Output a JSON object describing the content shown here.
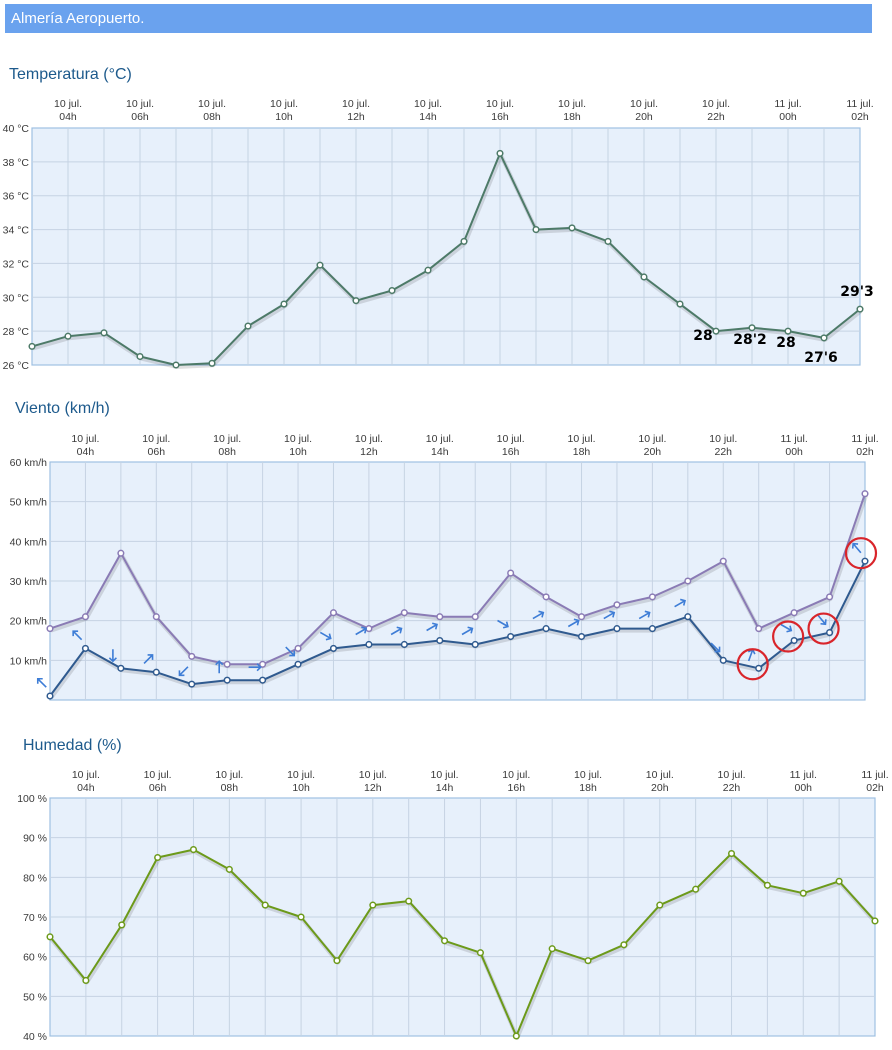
{
  "station": "Almería Aeropuerto.",
  "colors": {
    "temperature": "#4d7a68",
    "wind_gust": "#8a7bb5",
    "wind_mean": "#2f5a8f",
    "wind_arrow": "#3e7dd6",
    "humidity": "#6c9a1a",
    "highlight_circle": "#d9252b"
  },
  "chart_data": [
    {
      "id": "temperature",
      "type": "line",
      "title": "Temperatura (°C)",
      "x": [
        "03h",
        "04h",
        "05h",
        "06h",
        "07h",
        "08h",
        "09h",
        "10h",
        "11h",
        "12h",
        "13h",
        "14h",
        "15h",
        "16h",
        "17h",
        "18h",
        "19h",
        "20h",
        "21h",
        "22h",
        "23h",
        "00h",
        "01h",
        "02h"
      ],
      "x_tick_labels": [
        {
          "date": "10 jul.",
          "hour": "04h"
        },
        {
          "date": "10 jul.",
          "hour": "06h"
        },
        {
          "date": "10 jul.",
          "hour": "08h"
        },
        {
          "date": "10 jul.",
          "hour": "10h"
        },
        {
          "date": "10 jul.",
          "hour": "12h"
        },
        {
          "date": "10 jul.",
          "hour": "14h"
        },
        {
          "date": "10 jul.",
          "hour": "16h"
        },
        {
          "date": "10 jul.",
          "hour": "18h"
        },
        {
          "date": "10 jul.",
          "hour": "20h"
        },
        {
          "date": "10 jul.",
          "hour": "22h"
        },
        {
          "date": "11 jul.",
          "hour": "00h"
        },
        {
          "date": "11 jul.",
          "hour": "02h"
        }
      ],
      "series": [
        {
          "values": [
            27.1,
            27.7,
            27.9,
            26.5,
            26.0,
            26.1,
            28.3,
            29.6,
            31.9,
            29.8,
            30.4,
            31.6,
            33.3,
            38.5,
            34.0,
            34.1,
            33.3,
            31.2,
            29.6,
            28.0,
            28.2,
            28.0,
            27.6,
            29.3
          ]
        }
      ],
      "ylim": [
        26,
        40
      ],
      "y_ticks": [
        26,
        28,
        30,
        32,
        34,
        36,
        38,
        40
      ],
      "y_tick_labels": [
        "26 °C",
        "28 °C",
        "30 °C",
        "32 °C",
        "34 °C",
        "36 °C",
        "38 °C",
        "40 °C"
      ],
      "annotations": [
        {
          "text": "28",
          "point": 19
        },
        {
          "text": "28'2",
          "point": 20
        },
        {
          "text": "28",
          "point": 21
        },
        {
          "text": "27'6",
          "point": 22
        },
        {
          "text": "29'3",
          "point": 23
        }
      ]
    },
    {
      "id": "wind",
      "type": "line",
      "title": "Viento (km/h)",
      "x": [
        "03h",
        "04h",
        "05h",
        "06h",
        "07h",
        "08h",
        "09h",
        "10h",
        "11h",
        "12h",
        "13h",
        "14h",
        "15h",
        "16h",
        "17h",
        "18h",
        "19h",
        "20h",
        "21h",
        "22h",
        "23h",
        "00h",
        "01h",
        "02h"
      ],
      "x_tick_labels": [
        {
          "date": "10 jul.",
          "hour": "04h"
        },
        {
          "date": "10 jul.",
          "hour": "06h"
        },
        {
          "date": "10 jul.",
          "hour": "08h"
        },
        {
          "date": "10 jul.",
          "hour": "10h"
        },
        {
          "date": "10 jul.",
          "hour": "12h"
        },
        {
          "date": "10 jul.",
          "hour": "14h"
        },
        {
          "date": "10 jul.",
          "hour": "16h"
        },
        {
          "date": "10 jul.",
          "hour": "18h"
        },
        {
          "date": "10 jul.",
          "hour": "20h"
        },
        {
          "date": "10 jul.",
          "hour": "22h"
        },
        {
          "date": "11 jul.",
          "hour": "00h"
        },
        {
          "date": "11 jul.",
          "hour": "02h"
        }
      ],
      "series": [
        {
          "values": [
            18,
            21,
            37,
            21,
            11,
            9,
            9,
            13,
            22,
            18,
            22,
            21,
            21,
            32,
            26,
            21,
            24,
            26,
            30,
            35,
            18,
            22,
            26,
            52
          ]
        },
        {
          "values": [
            1,
            13,
            8,
            7,
            4,
            5,
            5,
            9,
            13,
            14,
            14,
            15,
            14,
            16,
            18,
            16,
            18,
            18,
            21,
            10,
            8,
            15,
            17,
            35
          ]
        }
      ],
      "wind_direction_deg": [
        135,
        135,
        0,
        225,
        45,
        180,
        270,
        315,
        300,
        240,
        240,
        240,
        240,
        300,
        240,
        240,
        240,
        240,
        240,
        315,
        200,
        300,
        320,
        140
      ],
      "ylim": [
        0,
        60
      ],
      "y_ticks": [
        10,
        20,
        30,
        40,
        50,
        60
      ],
      "y_tick_labels": [
        "10 km/h",
        "20 km/h",
        "30 km/h",
        "40 km/h",
        "50 km/h",
        "60 km/h"
      ],
      "highlighted_points": [
        20,
        21,
        22,
        23
      ]
    },
    {
      "id": "humidity",
      "type": "line",
      "title": "Humedad (%)",
      "x": [
        "03h",
        "04h",
        "05h",
        "06h",
        "07h",
        "08h",
        "09h",
        "10h",
        "11h",
        "12h",
        "13h",
        "14h",
        "15h",
        "16h",
        "17h",
        "18h",
        "19h",
        "20h",
        "21h",
        "22h",
        "23h",
        "00h",
        "01h",
        "02h"
      ],
      "x_tick_labels": [
        {
          "date": "10 jul.",
          "hour": "04h"
        },
        {
          "date": "10 jul.",
          "hour": "06h"
        },
        {
          "date": "10 jul.",
          "hour": "08h"
        },
        {
          "date": "10 jul.",
          "hour": "10h"
        },
        {
          "date": "10 jul.",
          "hour": "12h"
        },
        {
          "date": "10 jul.",
          "hour": "14h"
        },
        {
          "date": "10 jul.",
          "hour": "16h"
        },
        {
          "date": "10 jul.",
          "hour": "18h"
        },
        {
          "date": "10 jul.",
          "hour": "20h"
        },
        {
          "date": "10 jul.",
          "hour": "22h"
        },
        {
          "date": "11 jul.",
          "hour": "00h"
        },
        {
          "date": "11 jul.",
          "hour": "02h"
        }
      ],
      "series": [
        {
          "values": [
            65,
            54,
            68,
            85,
            87,
            82,
            73,
            70,
            59,
            73,
            74,
            64,
            61,
            40,
            62,
            59,
            63,
            73,
            77,
            86,
            78,
            76,
            79,
            69
          ]
        }
      ],
      "ylim": [
        40,
        100
      ],
      "y_ticks": [
        40,
        50,
        60,
        70,
        80,
        90,
        100
      ],
      "y_tick_labels": [
        "40 %",
        "50 %",
        "60 %",
        "70 %",
        "80 %",
        "90 %",
        "100 %"
      ]
    }
  ]
}
